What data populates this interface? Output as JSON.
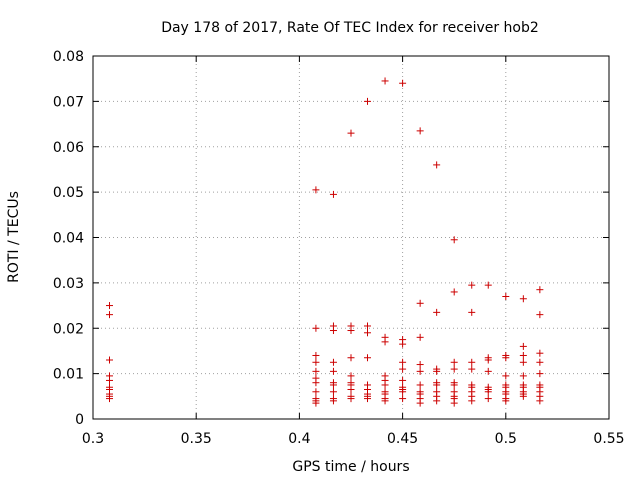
{
  "chart_data": {
    "type": "scatter",
    "title": "Day 178 of 2017, Rate Of TEC Index for receiver hob2",
    "xlabel": "GPS time / hours",
    "ylabel": "ROTI / TECUs",
    "xlim": [
      0.3,
      0.55
    ],
    "ylim": [
      0,
      0.08
    ],
    "xticks": [
      "0.3",
      "0.35",
      "0.4",
      "0.45",
      "0.5",
      "0.55"
    ],
    "yticks": [
      "0",
      "0.01",
      "0.02",
      "0.03",
      "0.04",
      "0.05",
      "0.06",
      "0.07",
      "0.08"
    ],
    "grid": true,
    "marker": "+",
    "color": "#cc0000",
    "series": [
      {
        "points": [
          [
            0.308,
            0.025
          ],
          [
            0.308,
            0.023
          ],
          [
            0.308,
            0.013
          ],
          [
            0.308,
            0.0095
          ],
          [
            0.308,
            0.0085
          ],
          [
            0.308,
            0.007
          ],
          [
            0.308,
            0.0065
          ],
          [
            0.308,
            0.0055
          ],
          [
            0.308,
            0.005
          ],
          [
            0.308,
            0.0045
          ],
          [
            0.408,
            0.0505
          ],
          [
            0.408,
            0.02
          ],
          [
            0.408,
            0.014
          ],
          [
            0.408,
            0.0125
          ],
          [
            0.408,
            0.0105
          ],
          [
            0.408,
            0.009
          ],
          [
            0.408,
            0.008
          ],
          [
            0.408,
            0.006
          ],
          [
            0.408,
            0.0045
          ],
          [
            0.408,
            0.004
          ],
          [
            0.408,
            0.0035
          ],
          [
            0.4165,
            0.0495
          ],
          [
            0.4165,
            0.0205
          ],
          [
            0.4165,
            0.0195
          ],
          [
            0.4165,
            0.0125
          ],
          [
            0.4165,
            0.0105
          ],
          [
            0.4165,
            0.008
          ],
          [
            0.4165,
            0.0075
          ],
          [
            0.4165,
            0.006
          ],
          [
            0.4165,
            0.0045
          ],
          [
            0.4165,
            0.004
          ],
          [
            0.425,
            0.063
          ],
          [
            0.425,
            0.0205
          ],
          [
            0.425,
            0.0195
          ],
          [
            0.425,
            0.0135
          ],
          [
            0.425,
            0.0095
          ],
          [
            0.425,
            0.008
          ],
          [
            0.425,
            0.0075
          ],
          [
            0.425,
            0.0065
          ],
          [
            0.425,
            0.005
          ],
          [
            0.425,
            0.0045
          ],
          [
            0.433,
            0.07
          ],
          [
            0.433,
            0.0205
          ],
          [
            0.433,
            0.019
          ],
          [
            0.433,
            0.0135
          ],
          [
            0.433,
            0.0075
          ],
          [
            0.433,
            0.0065
          ],
          [
            0.433,
            0.0055
          ],
          [
            0.433,
            0.005
          ],
          [
            0.433,
            0.0045
          ],
          [
            0.4415,
            0.0745
          ],
          [
            0.4415,
            0.018
          ],
          [
            0.4415,
            0.017
          ],
          [
            0.4415,
            0.0095
          ],
          [
            0.4415,
            0.0085
          ],
          [
            0.4415,
            0.0075
          ],
          [
            0.4415,
            0.006
          ],
          [
            0.4415,
            0.0055
          ],
          [
            0.4415,
            0.0045
          ],
          [
            0.4415,
            0.004
          ],
          [
            0.45,
            0.074
          ],
          [
            0.45,
            0.0175
          ],
          [
            0.45,
            0.0165
          ],
          [
            0.45,
            0.0125
          ],
          [
            0.45,
            0.011
          ],
          [
            0.45,
            0.0085
          ],
          [
            0.45,
            0.007
          ],
          [
            0.45,
            0.0065
          ],
          [
            0.45,
            0.006
          ],
          [
            0.45,
            0.0045
          ],
          [
            0.4585,
            0.0635
          ],
          [
            0.4585,
            0.0255
          ],
          [
            0.4585,
            0.018
          ],
          [
            0.4585,
            0.012
          ],
          [
            0.4585,
            0.0105
          ],
          [
            0.4585,
            0.0075
          ],
          [
            0.4585,
            0.006
          ],
          [
            0.4585,
            0.0055
          ],
          [
            0.4585,
            0.0045
          ],
          [
            0.4585,
            0.0035
          ],
          [
            0.4665,
            0.056
          ],
          [
            0.4665,
            0.0235
          ],
          [
            0.4665,
            0.011
          ],
          [
            0.4665,
            0.0105
          ],
          [
            0.4665,
            0.008
          ],
          [
            0.4665,
            0.0075
          ],
          [
            0.4665,
            0.006
          ],
          [
            0.4665,
            0.005
          ],
          [
            0.4665,
            0.004
          ],
          [
            0.475,
            0.0395
          ],
          [
            0.475,
            0.028
          ],
          [
            0.475,
            0.0125
          ],
          [
            0.475,
            0.011
          ],
          [
            0.475,
            0.008
          ],
          [
            0.475,
            0.0075
          ],
          [
            0.475,
            0.006
          ],
          [
            0.475,
            0.005
          ],
          [
            0.475,
            0.0045
          ],
          [
            0.475,
            0.0035
          ],
          [
            0.4835,
            0.0295
          ],
          [
            0.4835,
            0.0235
          ],
          [
            0.4835,
            0.0125
          ],
          [
            0.4835,
            0.011
          ],
          [
            0.4835,
            0.0075
          ],
          [
            0.4835,
            0.007
          ],
          [
            0.4835,
            0.006
          ],
          [
            0.4835,
            0.005
          ],
          [
            0.4835,
            0.004
          ],
          [
            0.4915,
            0.0295
          ],
          [
            0.4915,
            0.0135
          ],
          [
            0.4915,
            0.013
          ],
          [
            0.4915,
            0.0105
          ],
          [
            0.4915,
            0.007
          ],
          [
            0.4915,
            0.0065
          ],
          [
            0.4915,
            0.006
          ],
          [
            0.4915,
            0.0045
          ],
          [
            0.5,
            0.027
          ],
          [
            0.5,
            0.014
          ],
          [
            0.5,
            0.0135
          ],
          [
            0.5,
            0.0095
          ],
          [
            0.5,
            0.0075
          ],
          [
            0.5,
            0.007
          ],
          [
            0.5,
            0.006
          ],
          [
            0.5,
            0.0055
          ],
          [
            0.5,
            0.0045
          ],
          [
            0.5,
            0.004
          ],
          [
            0.5085,
            0.0265
          ],
          [
            0.5085,
            0.016
          ],
          [
            0.5085,
            0.014
          ],
          [
            0.5085,
            0.0125
          ],
          [
            0.5085,
            0.0095
          ],
          [
            0.5085,
            0.0075
          ],
          [
            0.5085,
            0.007
          ],
          [
            0.5085,
            0.006
          ],
          [
            0.5085,
            0.0055
          ],
          [
            0.5085,
            0.005
          ],
          [
            0.5165,
            0.0285
          ],
          [
            0.5165,
            0.023
          ],
          [
            0.5165,
            0.0145
          ],
          [
            0.5165,
            0.0125
          ],
          [
            0.5165,
            0.01
          ],
          [
            0.5165,
            0.0075
          ],
          [
            0.5165,
            0.007
          ],
          [
            0.5165,
            0.006
          ],
          [
            0.5165,
            0.005
          ],
          [
            0.5165,
            0.004
          ]
        ]
      }
    ]
  }
}
